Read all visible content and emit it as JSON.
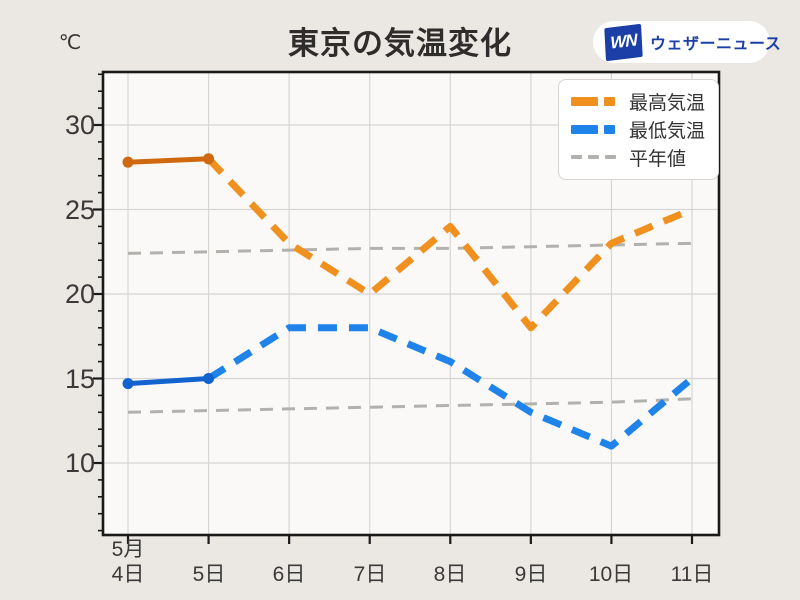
{
  "title": "東京の気温変化",
  "logo": {
    "monogram": "WN",
    "text": "ウェザーニュース"
  },
  "legend": [
    {
      "label": "最高気温",
      "color": "#f0901e"
    },
    {
      "label": "最低気温",
      "color": "#1f83ea"
    },
    {
      "label": "平年値",
      "color": "#b3b1ae"
    }
  ],
  "chart_data": {
    "type": "line",
    "title": "東京の気温変化",
    "y_unit": "℃",
    "x_first_month": "5月",
    "x_day_labels": [
      "4日",
      "5日",
      "6日",
      "7日",
      "8日",
      "9日",
      "10日",
      "11日"
    ],
    "x_categories": [
      "5月4日",
      "5月5日",
      "5月6日",
      "5月7日",
      "5月8日",
      "5月9日",
      "5月10日",
      "5月11日"
    ],
    "y_ticks": [
      30,
      25,
      20,
      15,
      10
    ],
    "y_minor_tick_step": 1,
    "ylim": [
      5.7,
      33.1
    ],
    "grid": true,
    "legend_position": "top-right",
    "series": [
      {
        "name": "最高気温",
        "role": "main",
        "values": [
          27.8,
          28,
          23,
          20,
          24,
          18,
          23,
          25
        ],
        "observed_points": 2,
        "observed_color": "#cf680f",
        "forecast_color": "#f0901e"
      },
      {
        "name": "最低気温",
        "role": "main",
        "values": [
          14.7,
          15,
          18,
          18,
          16,
          13,
          11,
          15
        ],
        "observed_points": 2,
        "observed_color": "#1263cf",
        "forecast_color": "#1f83ea"
      },
      {
        "name": "平年値（最高気温）",
        "role": "normal",
        "values": [
          22.4,
          22.5,
          22.6,
          22.7,
          22.7,
          22.8,
          22.9,
          23.0
        ],
        "color": "#b3b1ae"
      },
      {
        "name": "平年値（最低気温）",
        "role": "normal",
        "values": [
          13.0,
          13.1,
          13.2,
          13.3,
          13.4,
          13.5,
          13.6,
          13.8
        ],
        "color": "#b3b1ae"
      }
    ],
    "colors": {
      "background": "#ebe8e4",
      "plot_background": "#faf9f8",
      "gridline": "#d8d5d2",
      "spine": "#1a1a1a",
      "normal_line": "#b3b1ae"
    }
  }
}
